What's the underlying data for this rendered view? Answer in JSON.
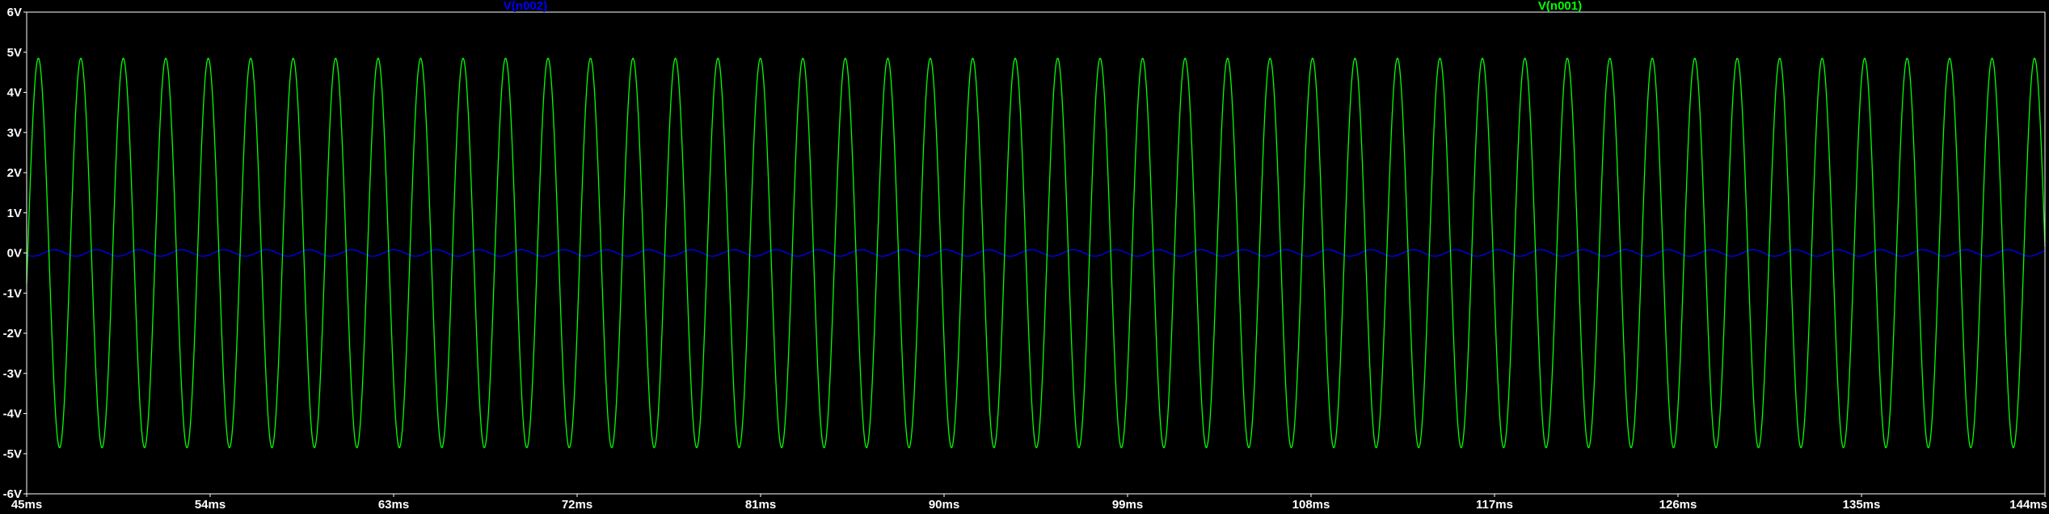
{
  "chart_data": {
    "type": "line",
    "background": "#000000",
    "axis_color": "#FFFFFF",
    "grid": false,
    "x": {
      "min": 45,
      "max": 144,
      "ticks": [
        45,
        54,
        63,
        72,
        81,
        90,
        99,
        108,
        117,
        126,
        135,
        144
      ],
      "tick_labels": [
        "45ms",
        "54ms",
        "63ms",
        "72ms",
        "81ms",
        "90ms",
        "99ms",
        "108ms",
        "117ms",
        "126ms",
        "135ms",
        "144ms"
      ]
    },
    "y": {
      "min": -6,
      "max": 6,
      "ticks": [
        6,
        5,
        4,
        3,
        2,
        1,
        0,
        -1,
        -2,
        -3,
        -4,
        -5,
        -6
      ],
      "tick_labels": [
        "6V",
        "5V",
        "4V",
        "3V",
        "2V",
        "1V",
        "0V",
        "-1V",
        "-2V",
        "-3V",
        "-4V",
        "-5V",
        "-6V"
      ]
    },
    "legend_placement": "top",
    "series": [
      {
        "name": "V(n002)",
        "color": "#0000FF",
        "waveform": "sine",
        "amplitude_v": 0.08,
        "offset_v": 0.0,
        "frequency_hz": 480,
        "phase_deg": 0
      },
      {
        "name": "V(n001)",
        "color": "#00FF00",
        "waveform": "sine",
        "amplitude_v": 4.85,
        "offset_v": 0.0,
        "frequency_hz": 480,
        "phase_deg": 135
      }
    ]
  }
}
